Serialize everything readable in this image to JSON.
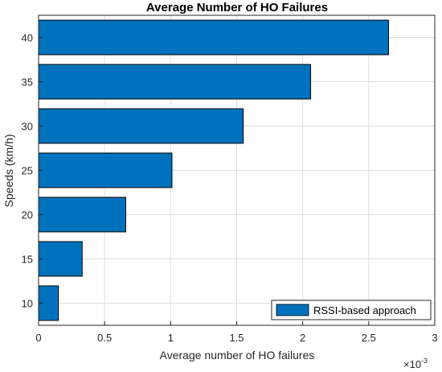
{
  "chart_data": {
    "type": "bar",
    "orientation": "horizontal",
    "title": "Average Number of HO Failures",
    "xlabel": "Average number of HO failures",
    "ylabel": "Speeds (km/h)",
    "x_multiplier": "×10",
    "x_multiplier_exponent": "-3",
    "xlim": [
      0,
      3
    ],
    "xticks": [
      "0",
      "0.5",
      "1",
      "1.5",
      "2",
      "2.5",
      "3"
    ],
    "categories": [
      "10",
      "15",
      "20",
      "25",
      "30",
      "35",
      "40"
    ],
    "series": [
      {
        "name": "RSSI-based approach",
        "values": [
          0.15,
          0.33,
          0.66,
          1.01,
          1.55,
          2.06,
          2.65
        ],
        "color": "#0072BD"
      }
    ],
    "grid": true,
    "legend_position": "bottom-right"
  }
}
